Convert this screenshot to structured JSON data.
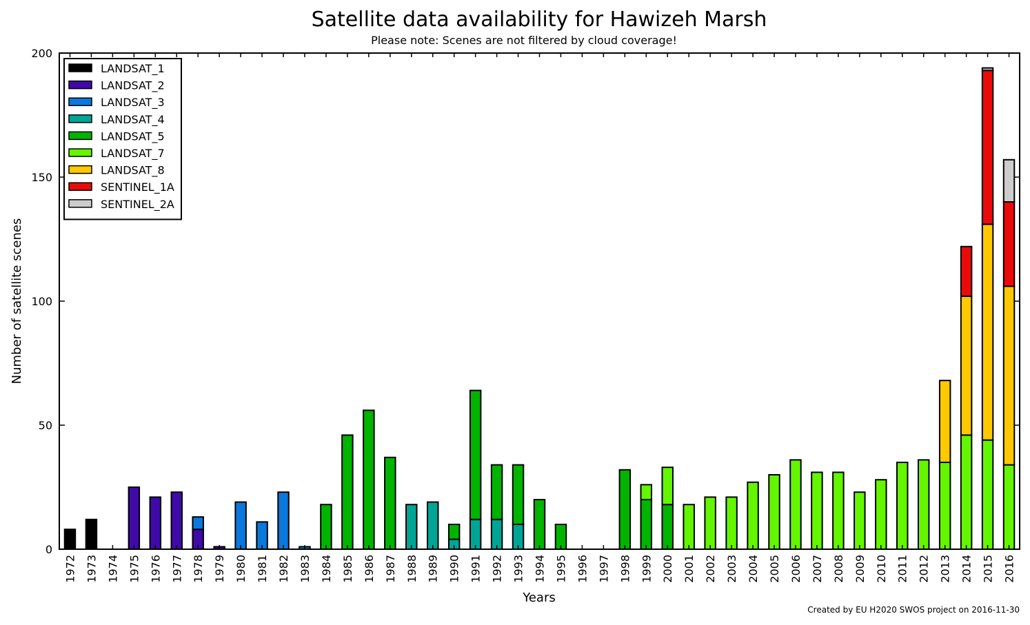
{
  "chart_data": {
    "type": "bar",
    "stacked": true,
    "title": "Satellite data availability for Hawizeh Marsh",
    "subtitle": "Please note: Scenes are not filtered by cloud coverage!",
    "xlabel": "Years",
    "ylabel": "Number of satellite scenes",
    "ylim": [
      0,
      200
    ],
    "yticks": [
      0,
      50,
      100,
      150,
      200
    ],
    "grid": false,
    "legend_position": "top-left",
    "credit": "Created by EU H2020 SWOS project on 2016-11-30",
    "categories": [
      "1972",
      "1973",
      "1974",
      "1975",
      "1976",
      "1977",
      "1978",
      "1979",
      "1980",
      "1981",
      "1982",
      "1983",
      "1984",
      "1985",
      "1986",
      "1987",
      "1988",
      "1989",
      "1990",
      "1991",
      "1992",
      "1993",
      "1994",
      "1995",
      "1996",
      "1997",
      "1998",
      "1999",
      "2000",
      "2001",
      "2002",
      "2003",
      "2004",
      "2005",
      "2006",
      "2007",
      "2008",
      "2009",
      "2010",
      "2011",
      "2012",
      "2013",
      "2014",
      "2015",
      "2016"
    ],
    "series": [
      {
        "name": "LANDSAT_1",
        "color": "#000000",
        "values": [
          8,
          12,
          0,
          0,
          0,
          0,
          0,
          0,
          0,
          0,
          0,
          0,
          0,
          0,
          0,
          0,
          0,
          0,
          0,
          0,
          0,
          0,
          0,
          0,
          0,
          0,
          0,
          0,
          0,
          0,
          0,
          0,
          0,
          0,
          0,
          0,
          0,
          0,
          0,
          0,
          0,
          0,
          0,
          0,
          0
        ]
      },
      {
        "name": "LANDSAT_2",
        "color": "#3f0aa8",
        "values": [
          0,
          0,
          0,
          25,
          21,
          23,
          8,
          1,
          0,
          0,
          0,
          0,
          0,
          0,
          0,
          0,
          0,
          0,
          0,
          0,
          0,
          0,
          0,
          0,
          0,
          0,
          0,
          0,
          0,
          0,
          0,
          0,
          0,
          0,
          0,
          0,
          0,
          0,
          0,
          0,
          0,
          0,
          0,
          0,
          0
        ]
      },
      {
        "name": "LANDSAT_3",
        "color": "#0a78dc",
        "values": [
          0,
          0,
          0,
          0,
          0,
          0,
          5,
          0,
          19,
          11,
          23,
          1,
          0,
          0,
          0,
          0,
          0,
          0,
          0,
          0,
          0,
          0,
          0,
          0,
          0,
          0,
          0,
          0,
          0,
          0,
          0,
          0,
          0,
          0,
          0,
          0,
          0,
          0,
          0,
          0,
          0,
          0,
          0,
          0,
          0
        ]
      },
      {
        "name": "LANDSAT_4",
        "color": "#00a596",
        "values": [
          0,
          0,
          0,
          0,
          0,
          0,
          0,
          0,
          0,
          0,
          0,
          0,
          0,
          0,
          0,
          0,
          18,
          19,
          4,
          12,
          12,
          10,
          0,
          0,
          0,
          0,
          0,
          0,
          0,
          0,
          0,
          0,
          0,
          0,
          0,
          0,
          0,
          0,
          0,
          0,
          0,
          0,
          0,
          0,
          0
        ]
      },
      {
        "name": "LANDSAT_5",
        "color": "#00b400",
        "values": [
          0,
          0,
          0,
          0,
          0,
          0,
          0,
          0,
          0,
          0,
          0,
          0,
          18,
          46,
          56,
          37,
          0,
          0,
          6,
          52,
          22,
          24,
          20,
          10,
          0,
          0,
          32,
          20,
          18,
          0,
          0,
          0,
          0,
          0,
          0,
          0,
          0,
          0,
          0,
          0,
          0,
          0,
          0,
          0,
          0
        ]
      },
      {
        "name": "LANDSAT_7",
        "color": "#64f500",
        "values": [
          0,
          0,
          0,
          0,
          0,
          0,
          0,
          0,
          0,
          0,
          0,
          0,
          0,
          0,
          0,
          0,
          0,
          0,
          0,
          0,
          0,
          0,
          0,
          0,
          0,
          0,
          0,
          6,
          15,
          18,
          21,
          21,
          27,
          30,
          36,
          31,
          31,
          23,
          28,
          35,
          36,
          35,
          46,
          44,
          34
        ]
      },
      {
        "name": "LANDSAT_8",
        "color": "#ffc800",
        "values": [
          0,
          0,
          0,
          0,
          0,
          0,
          0,
          0,
          0,
          0,
          0,
          0,
          0,
          0,
          0,
          0,
          0,
          0,
          0,
          0,
          0,
          0,
          0,
          0,
          0,
          0,
          0,
          0,
          0,
          0,
          0,
          0,
          0,
          0,
          0,
          0,
          0,
          0,
          0,
          0,
          0,
          33,
          56,
          87,
          72
        ]
      },
      {
        "name": "SENTINEL_1A",
        "color": "#eb0a0a",
        "values": [
          0,
          0,
          0,
          0,
          0,
          0,
          0,
          0,
          0,
          0,
          0,
          0,
          0,
          0,
          0,
          0,
          0,
          0,
          0,
          0,
          0,
          0,
          0,
          0,
          0,
          0,
          0,
          0,
          0,
          0,
          0,
          0,
          0,
          0,
          0,
          0,
          0,
          0,
          0,
          0,
          0,
          0,
          20,
          62,
          34
        ]
      },
      {
        "name": "SENTINEL_2A",
        "color": "#cccccc",
        "values": [
          0,
          0,
          0,
          0,
          0,
          0,
          0,
          0,
          0,
          0,
          0,
          0,
          0,
          0,
          0,
          0,
          0,
          0,
          0,
          0,
          0,
          0,
          0,
          0,
          0,
          0,
          0,
          0,
          0,
          0,
          0,
          0,
          0,
          0,
          0,
          0,
          0,
          0,
          0,
          0,
          0,
          0,
          0,
          1,
          17
        ]
      }
    ]
  }
}
